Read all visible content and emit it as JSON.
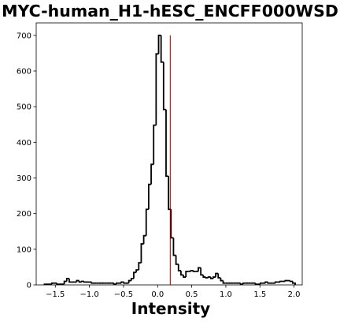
{
  "chart_data": {
    "type": "histogram",
    "title": "MYC-human_H1-hESC_ENCFF000WSD",
    "xlabel": "Intensity",
    "ylabel": "",
    "xlim": [
      -1.78,
      2.12
    ],
    "ylim": [
      0,
      735
    ],
    "xticks": [
      -1.5,
      -1.0,
      -0.5,
      0.0,
      0.5,
      1.0,
      1.5,
      2.0
    ],
    "xtick_labels": [
      "−1.5",
      "−1.0",
      "−0.5",
      "0.0",
      "0.5",
      "1.0",
      "1.5",
      "2.0"
    ],
    "yticks": [
      0,
      100,
      200,
      300,
      400,
      500,
      600,
      700
    ],
    "ytick_labels": [
      "0",
      "100",
      "200",
      "300",
      "400",
      "500",
      "600",
      "700"
    ],
    "bin_start": -1.66,
    "bin_width": 0.0364,
    "counts": [
      2,
      2,
      2,
      5,
      5,
      2,
      2,
      2,
      10,
      18,
      8,
      8,
      8,
      12,
      8,
      10,
      8,
      8,
      8,
      5,
      5,
      5,
      5,
      5,
      5,
      5,
      5,
      5,
      2,
      5,
      5,
      8,
      5,
      5,
      12,
      18,
      35,
      42,
      62,
      115,
      138,
      212,
      282,
      338,
      448,
      648,
      700,
      625,
      492,
      305,
      212,
      132,
      83,
      58,
      40,
      28,
      22,
      38,
      38,
      40,
      38,
      38,
      48,
      28,
      22,
      20,
      22,
      18,
      22,
      32,
      20,
      12,
      5,
      5,
      5,
      5,
      5,
      5,
      5,
      2,
      5,
      5,
      5,
      5,
      5,
      2,
      2,
      5,
      5,
      8,
      5,
      5,
      5,
      8,
      8,
      10,
      10,
      12,
      12,
      10,
      5
    ],
    "vline": {
      "x": 0.185,
      "color": "#8b0000",
      "y_top": 700
    },
    "grid": false,
    "legend": "none",
    "line_color": "#000000"
  }
}
